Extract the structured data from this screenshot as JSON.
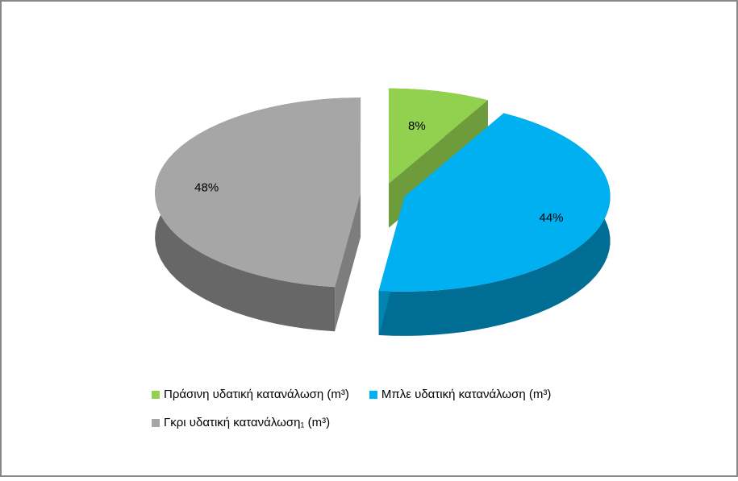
{
  "chart_data": {
    "type": "pie",
    "categories": [
      "Πράσινη υδατική κατανάλωση (m³)",
      "Μπλε υδατική κατανάλωση (m³)",
      "Γκρι υδατική κατανάλωση₁ (m³)"
    ],
    "values": [
      8,
      44,
      48
    ],
    "value_labels": [
      "8%",
      "44%",
      "48%"
    ],
    "colors": [
      "#92d050",
      "#00b0f0",
      "#a6a6a6"
    ],
    "legend": "bottom"
  }
}
